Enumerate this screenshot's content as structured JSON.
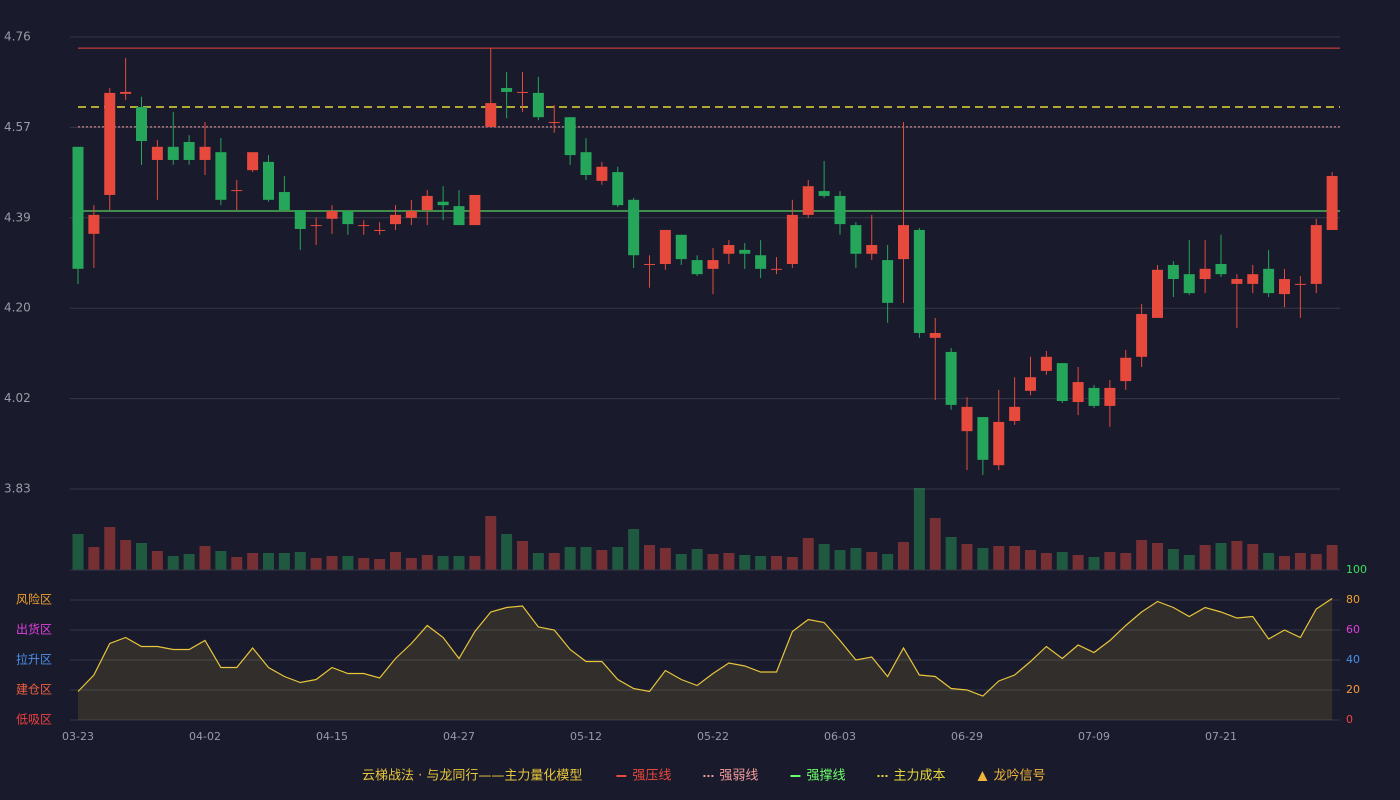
{
  "chart_data": [
    {
      "type": "candlestick",
      "title": "云梯战法 · 与龙同行——主力量化模型",
      "categories": [
        "03-23",
        null,
        null,
        null,
        null,
        null,
        null,
        null,
        "04-02",
        null,
        null,
        null,
        null,
        null,
        null,
        null,
        "04-15",
        null,
        null,
        null,
        null,
        null,
        null,
        null,
        "04-27",
        null,
        null,
        null,
        null,
        null,
        null,
        null,
        "05-12",
        null,
        null,
        null,
        null,
        null,
        null,
        null,
        "05-22",
        null,
        null,
        null,
        null,
        null,
        null,
        null,
        "06-03",
        null,
        null,
        null,
        null,
        null,
        null,
        null,
        "06-29",
        null,
        null,
        null,
        null,
        null,
        null,
        null,
        "07-09",
        null,
        null,
        null,
        null,
        null,
        null,
        null,
        "07-21",
        null,
        null,
        null,
        null,
        null,
        null,
        null
      ],
      "open": [
        4.534,
        4.355,
        4.435,
        4.643,
        4.616,
        4.507,
        4.534,
        4.544,
        4.507,
        4.523,
        4.443,
        4.486,
        4.503,
        4.441,
        4.404,
        4.371,
        4.386,
        4.402,
        4.371,
        4.361,
        4.375,
        4.388,
        4.404,
        4.421,
        4.412,
        4.373,
        4.575,
        4.655,
        4.645,
        4.645,
        4.583,
        4.595,
        4.523,
        4.464,
        4.482,
        4.425,
        4.291,
        4.293,
        4.353,
        4.301,
        4.283,
        4.314,
        4.322,
        4.311,
        4.281,
        4.293,
        4.394,
        4.443,
        4.433,
        4.373,
        4.314,
        4.301,
        4.303,
        4.363,
        4.141,
        4.112,
        3.949,
        3.978,
        3.879,
        3.97,
        4.032,
        4.073,
        4.089,
        4.009,
        4.038,
        4.001,
        4.052,
        4.102,
        4.182,
        4.291,
        4.272,
        4.262,
        4.293,
        4.252,
        4.252,
        4.283,
        4.231,
        4.25,
        4.252,
        4.363
      ],
      "high": [
        4.534,
        4.414,
        4.655,
        4.717,
        4.637,
        4.548,
        4.606,
        4.558,
        4.585,
        4.552,
        4.466,
        4.523,
        4.517,
        4.474,
        4.404,
        4.388,
        4.414,
        4.402,
        4.383,
        4.379,
        4.414,
        4.425,
        4.445,
        4.453,
        4.445,
        4.435,
        4.737,
        4.688,
        4.688,
        4.678,
        4.62,
        4.595,
        4.552,
        4.503,
        4.493,
        4.429,
        4.311,
        4.363,
        4.353,
        4.311,
        4.326,
        4.342,
        4.336,
        4.342,
        4.307,
        4.425,
        4.466,
        4.505,
        4.443,
        4.379,
        4.394,
        4.332,
        4.585,
        4.367,
        4.182,
        4.12,
        4.019,
        3.978,
        4.034,
        4.06,
        4.102,
        4.114,
        4.089,
        4.081,
        4.044,
        4.054,
        4.116,
        4.211,
        4.291,
        4.299,
        4.342,
        4.342,
        4.353,
        4.272,
        4.291,
        4.322,
        4.283,
        4.268,
        4.386,
        4.482
      ],
      "low": [
        4.252,
        4.285,
        4.404,
        4.63,
        4.497,
        4.425,
        4.497,
        4.497,
        4.476,
        4.414,
        4.404,
        4.482,
        4.421,
        4.404,
        4.322,
        4.332,
        4.355,
        4.353,
        4.353,
        4.353,
        4.363,
        4.373,
        4.373,
        4.383,
        4.373,
        4.373,
        4.575,
        4.593,
        4.606,
        4.589,
        4.563,
        4.497,
        4.466,
        4.456,
        4.41,
        4.285,
        4.244,
        4.281,
        4.291,
        4.268,
        4.231,
        4.293,
        4.283,
        4.264,
        4.272,
        4.285,
        4.388,
        4.429,
        4.353,
        4.285,
        4.301,
        4.172,
        4.213,
        4.141,
        4.013,
        3.993,
        3.869,
        3.859,
        3.869,
        3.962,
        4.023,
        4.065,
        4.007,
        3.982,
        3.997,
        3.958,
        4.034,
        4.081,
        4.182,
        4.225,
        4.229,
        4.233,
        4.266,
        4.161,
        4.233,
        4.225,
        4.204,
        4.182,
        4.233,
        4.363
      ],
      "close": [
        4.283,
        4.394,
        4.645,
        4.647,
        4.546,
        4.534,
        4.507,
        4.507,
        4.534,
        4.425,
        4.445,
        4.523,
        4.425,
        4.404,
        4.365,
        4.373,
        4.402,
        4.375,
        4.373,
        4.363,
        4.394,
        4.402,
        4.433,
        4.414,
        4.373,
        4.435,
        4.624,
        4.647,
        4.647,
        4.595,
        4.585,
        4.517,
        4.476,
        4.493,
        4.414,
        4.311,
        4.293,
        4.363,
        4.303,
        4.272,
        4.301,
        4.332,
        4.314,
        4.283,
        4.283,
        4.394,
        4.453,
        4.433,
        4.375,
        4.314,
        4.332,
        4.213,
        4.373,
        4.151,
        4.151,
        4.003,
        3.999,
        3.89,
        3.968,
        3.999,
        4.06,
        4.102,
        4.011,
        4.05,
        4.001,
        4.038,
        4.1,
        4.19,
        4.281,
        4.262,
        4.233,
        4.283,
        4.272,
        4.262,
        4.272,
        4.233,
        4.262,
        4.252,
        4.373,
        4.474
      ],
      "up_color": "#e8493d",
      "down_color": "#26a65b",
      "ylim": [
        3.83,
        4.76
      ],
      "yticks": [
        3.83,
        {
          "value": 4.016,
          "label": "4.02"
        },
        {
          "value": 4.202,
          "label": "4.20"
        },
        {
          "value": 4.388,
          "label": "4.39"
        },
        {
          "value": 4.574,
          "label": "4.57"
        },
        4.76
      ],
      "grid": true,
      "lines": [
        {
          "name": "强压线",
          "color": "#e8493d",
          "style": "solid",
          "value": 4.737
        },
        {
          "name": "强弱线",
          "color": "#f29b9b",
          "style": "dotted",
          "value": 4.575
        },
        {
          "name": "强撑线",
          "color": "#6cff6c",
          "style": "solid",
          "value": 4.402
        },
        {
          "name": "主力成本",
          "color": "#e6d83a",
          "style": "dashed",
          "value": 4.616
        }
      ],
      "signal": {
        "name": "龙吟信号",
        "color": "#f0b43a"
      }
    },
    {
      "type": "bar",
      "values": [
        36,
        23,
        43,
        30,
        27,
        19,
        14,
        16,
        24,
        19,
        13,
        17,
        17,
        17,
        18,
        12,
        14,
        14,
        12,
        11,
        18,
        12,
        15,
        14,
        14,
        14,
        54,
        36,
        29,
        17,
        17,
        23,
        23,
        20,
        23,
        41,
        25,
        22,
        16,
        21,
        16,
        17,
        15,
        14,
        14,
        13,
        32,
        26,
        20,
        22,
        18,
        16,
        28,
        82,
        52,
        33,
        26,
        22,
        24,
        24,
        20,
        17,
        18,
        15,
        13,
        18,
        17,
        30,
        27,
        21,
        15,
        25,
        27,
        29,
        26,
        17,
        14,
        17,
        16,
        25
      ],
      "ylim": [
        0,
        82
      ]
    },
    {
      "type": "area",
      "color": "#e8c53a",
      "values": [
        19,
        30,
        51,
        55,
        49,
        49,
        47,
        47,
        53,
        35,
        35,
        48,
        35,
        29,
        25,
        27,
        35,
        31,
        31,
        28,
        41,
        51,
        63,
        55,
        41,
        59,
        72,
        75,
        76,
        62,
        60,
        47,
        39,
        39,
        27,
        21,
        19,
        33,
        27,
        23,
        31,
        38,
        36,
        32,
        32,
        59,
        67,
        65,
        53,
        40,
        42,
        29,
        48,
        30,
        29,
        21,
        20,
        16,
        26,
        30,
        39,
        49,
        41,
        50,
        45,
        53,
        63,
        72,
        79,
        75,
        69,
        75,
        72,
        68,
        69,
        54,
        60,
        55,
        74,
        81
      ],
      "ylim": [
        0,
        100
      ],
      "yticks": [
        0,
        20,
        40,
        60,
        80,
        100
      ],
      "ytick_colors": [
        "#ef4444",
        "#f59a3b",
        "#4a90e8",
        "#e040e0",
        "#f0a030",
        "#3ce05a"
      ],
      "zones": [
        {
          "label": "风险区",
          "value": 80,
          "color": "#f0a030"
        },
        {
          "label": "出货区",
          "value": 60,
          "color": "#e040e0"
        },
        {
          "label": "拉升区",
          "value": 40,
          "color": "#4a90e8"
        },
        {
          "label": "建仓区",
          "value": 20,
          "color": "#f06040"
        },
        {
          "label": "低吸区",
          "value": 0,
          "color": "#f04040"
        }
      ]
    }
  ]
}
